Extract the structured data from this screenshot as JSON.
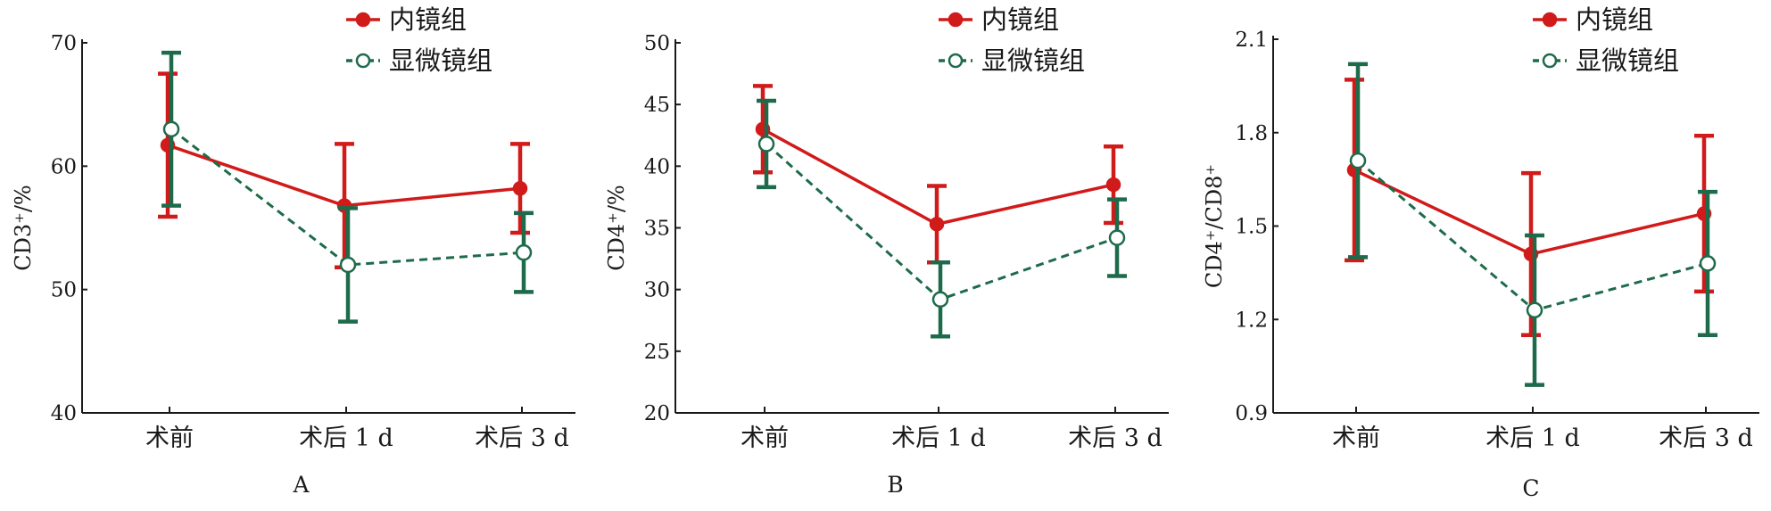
{
  "colors": {
    "endoscope": "#d11a1a",
    "microscope": "#1e6b4b",
    "axis": "#1a1a1a"
  },
  "legend": {
    "endoscope": "内镜组",
    "microscope": "显微镜组",
    "placement": "top-right"
  },
  "chart_data": [
    {
      "type": "line",
      "panel": "A",
      "categories": [
        "术前",
        "术后 1 d",
        "术后 3 d"
      ],
      "ylabel": "CD3⁺/%",
      "ylim": [
        40,
        70
      ],
      "yticks": [
        "40",
        "50",
        "60",
        "70"
      ],
      "series": [
        {
          "name": "内镜组",
          "values": [
            61.7,
            56.8,
            58.2
          ],
          "err": [
            5.8,
            5.0,
            3.6
          ]
        },
        {
          "name": "显微镜组",
          "values": [
            63.0,
            52.0,
            53.0
          ],
          "err": [
            6.2,
            4.6,
            3.2
          ]
        }
      ]
    },
    {
      "type": "line",
      "panel": "B",
      "categories": [
        "术前",
        "术后 1 d",
        "术后 3 d"
      ],
      "ylabel": "CD4⁺/%",
      "ylim": [
        20,
        50
      ],
      "yticks": [
        "20",
        "25",
        "30",
        "35",
        "40",
        "45",
        "50"
      ],
      "series": [
        {
          "name": "内镜组",
          "values": [
            43.0,
            35.3,
            38.5
          ],
          "err": [
            3.5,
            3.1,
            3.1
          ]
        },
        {
          "name": "显微镜组",
          "values": [
            41.8,
            29.2,
            34.2
          ],
          "err": [
            3.5,
            3.0,
            3.1
          ]
        }
      ]
    },
    {
      "type": "line",
      "panel": "C",
      "categories": [
        "术前",
        "术后 1 d",
        "术后 3 d"
      ],
      "ylabel": "CD4⁺/CD8⁺",
      "ylim": [
        0.9,
        2.1
      ],
      "yticks": [
        "0.9",
        "1.2",
        "1.5",
        "1.8",
        "2.1"
      ],
      "series": [
        {
          "name": "内镜组",
          "values": [
            1.68,
            1.41,
            1.54
          ],
          "err": [
            0.29,
            0.26,
            0.25
          ]
        },
        {
          "name": "显微镜组",
          "values": [
            1.71,
            1.23,
            1.38
          ],
          "err": [
            0.31,
            0.24,
            0.23
          ]
        }
      ]
    }
  ]
}
